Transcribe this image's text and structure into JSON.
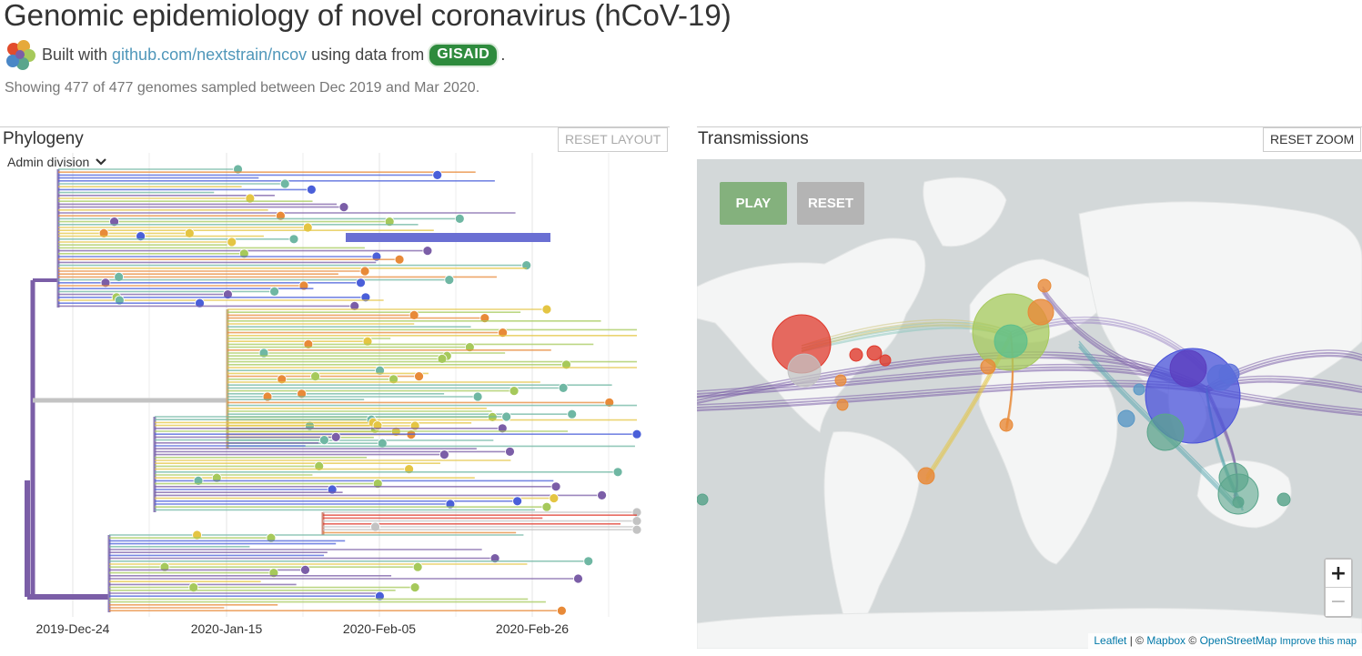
{
  "header": {
    "title": "Genomic epidemiology of novel coronavirus (hCoV-19)",
    "built_with": "Built with",
    "repo_link": "github.com/nextstrain/ncov",
    "using_data_from": "using data from",
    "gisaid_label": "GISAID",
    "period": ".",
    "summary": "Showing 477 of 477 genomes sampled between Dec 2019 and Mar 2020."
  },
  "phylogeny": {
    "title": "Phylogeny",
    "reset_layout": "RESET LAYOUT",
    "color_by": "Admin division",
    "x_axis_ticks": [
      "2019-Dec-24",
      "2020-Jan-15",
      "2020-Feb-05",
      "2020-Feb-26"
    ]
  },
  "transmissions": {
    "title": "Transmissions",
    "reset_zoom": "RESET ZOOM",
    "play": "PLAY",
    "reset": "RESET",
    "zoom_in": "+",
    "zoom_out": "−",
    "attribution": {
      "leaflet": "Leaflet",
      "sep": " | © ",
      "mapbox": "Mapbox",
      "sep2": " © ",
      "osm": "OpenStreetMap",
      "improve": "Improve this map"
    }
  },
  "colors": {
    "purple": "#7b5ea7",
    "blue": "#4a5fd9",
    "teal": "#6fb7a3",
    "green": "#a6c95b",
    "yellow": "#e4c543",
    "orange": "#e88a38",
    "red": "#e0392c",
    "grey": "#c3c3c3"
  }
}
